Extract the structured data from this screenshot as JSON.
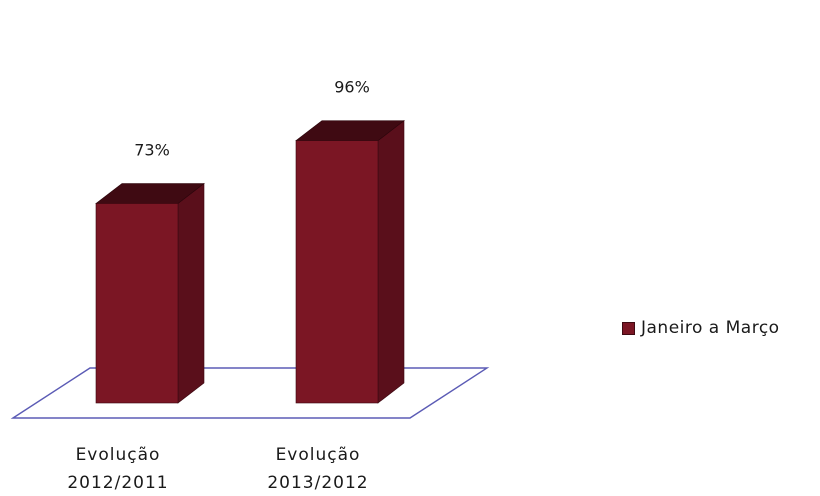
{
  "chart_data": {
    "type": "bar",
    "categories": [
      "Evolução\n2012/2011",
      "Evolução\n2013/2012"
    ],
    "series": [
      {
        "name": "Janeiro a Março",
        "values": [
          73,
          96
        ]
      }
    ],
    "value_labels": [
      "73%",
      "96%"
    ],
    "ylim": [
      0,
      100
    ],
    "grid": false,
    "legend_position": "right",
    "colors": {
      "bar_front": "#7b1624",
      "bar_side": "#5a0f1b",
      "bar_top": "#3f0a12",
      "floor": "#5b5bb5"
    }
  }
}
